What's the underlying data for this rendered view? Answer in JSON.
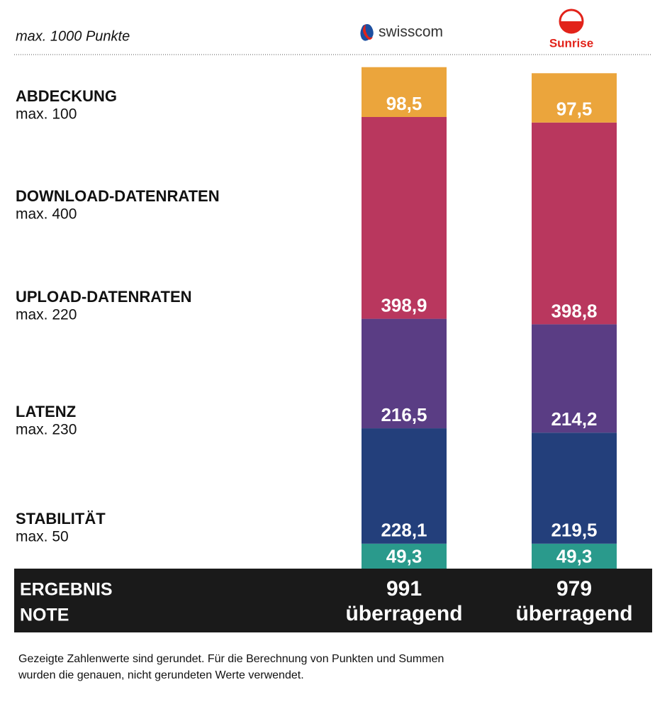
{
  "chart_data": {
    "type": "stacked-bar",
    "title": "max. 1000 Punkte",
    "categories": [
      "swisscom",
      "Sunrise"
    ],
    "category_colors": [
      "#333333",
      "#e2231a"
    ],
    "series": [
      {
        "name": "ABDECKUNG",
        "note": "max. 100",
        "color": "#eba53c",
        "values": [
          98.5,
          97.5
        ],
        "value_labels": [
          "98,5",
          "97,5"
        ]
      },
      {
        "name": "DOWNLOAD-DATENRATEN",
        "note": "max. 400",
        "color": "#b9375e",
        "values": [
          398.9,
          398.8
        ],
        "value_labels": [
          "398,9",
          "398,8"
        ]
      },
      {
        "name": "UPLOAD-DATENRATEN",
        "note": "max. 220",
        "color": "#5a3d84",
        "values": [
          216.5,
          214.2
        ],
        "value_labels": [
          "216,5",
          "214,2"
        ]
      },
      {
        "name": "LATENZ",
        "note": "max. 230",
        "color": "#233f7b",
        "values": [
          228.1,
          219.5
        ],
        "value_labels": [
          "228,1",
          "219,5"
        ]
      },
      {
        "name": "STABILITÄT",
        "note": "max. 50",
        "color": "#2a9a8c",
        "values": [
          49.3,
          49.3
        ],
        "value_labels": [
          "49,3",
          "49,3"
        ]
      }
    ],
    "result": {
      "label": "ERGEBNIS",
      "values": [
        991,
        979
      ]
    },
    "grade": {
      "label": "NOTE",
      "values": [
        "überragend",
        "überragend"
      ]
    },
    "footnote": [
      "Gezeigte Zahlenwerte sind gerundet. Für die Berechnung von Punkten und Summen",
      "wurden die genauen, nicht gerundeten Werte verwendet."
    ]
  }
}
